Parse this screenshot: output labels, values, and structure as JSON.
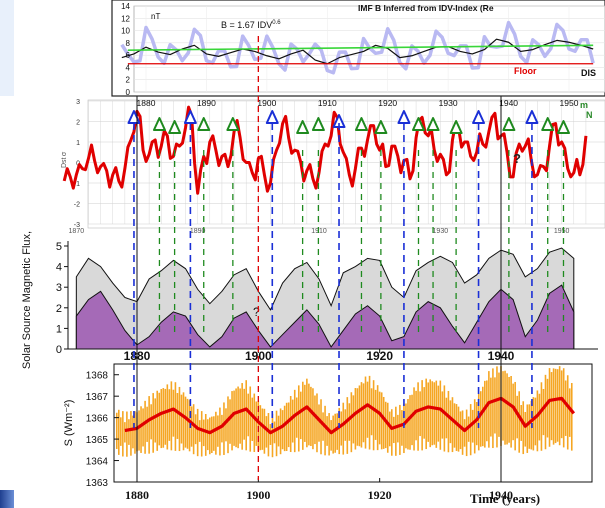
{
  "chart_data": [
    {
      "id": "imf_panel",
      "type": "line",
      "ylabel": "nT",
      "title": "IMF B Inferred from IDV-Index (Re",
      "formula_text": "B = 1.67 IDV",
      "formula_exp": "0.6",
      "floor_label": "Floor",
      "floor_value": 4.6,
      "mean_value": 6.8,
      "ylim": [
        0,
        14
      ],
      "yticks": [
        "14",
        "12",
        "10",
        "8",
        "6",
        "4",
        "2",
        "0"
      ],
      "xlim": [
        1875,
        1955
      ],
      "xticks": [
        "1880",
        "1890",
        "1900",
        "1910",
        "1920",
        "1930",
        "1940",
        "1950"
      ],
      "x": [
        1876,
        1878,
        1880,
        1882,
        1884,
        1886,
        1888,
        1890,
        1892,
        1894,
        1896,
        1898,
        1900,
        1902,
        1904,
        1906,
        1908,
        1910,
        1912,
        1914,
        1916,
        1918,
        1920,
        1922,
        1924,
        1926,
        1928,
        1930,
        1932,
        1934,
        1936,
        1938,
        1940,
        1942,
        1944,
        1946,
        1948,
        1950,
        1952,
        1954
      ],
      "y": [
        5.6,
        6.2,
        7.3,
        6.5,
        6.1,
        7.0,
        7.6,
        6.2,
        5.8,
        6.4,
        7.0,
        6.6,
        5.9,
        5.4,
        6.2,
        6.8,
        5.2,
        4.6,
        5.6,
        6.1,
        6.6,
        7.6,
        7.1,
        5.6,
        5.9,
        6.6,
        7.3,
        7.4,
        6.6,
        6.2,
        6.9,
        8.6,
        8.1,
        6.6,
        6.9,
        7.7,
        8.4,
        8.1,
        7.6,
        7.0
      ],
      "truncated_right_text": "DIS",
      "truncated_right_text_2": "m",
      "truncated_right_text_3": "N"
    },
    {
      "id": "dst_panel",
      "type": "line",
      "ylabel": "Dst σ",
      "ylim": [
        -3,
        3
      ],
      "yticks": [
        "3",
        "2",
        "1",
        "0",
        "-1",
        "-2",
        "-3"
      ],
      "xlim": [
        1868,
        1955
      ],
      "xticks": [
        "1870",
        "1890",
        "1910",
        "1930",
        "1950"
      ],
      "series_color": "#e00000",
      "x": [
        1868,
        1869,
        1870,
        1871,
        1872,
        1873,
        1874,
        1875,
        1876,
        1877,
        1878,
        1879,
        1880,
        1881,
        1882,
        1883,
        1884,
        1885,
        1886,
        1887,
        1888,
        1889,
        1890,
        1891,
        1892,
        1893,
        1894,
        1895,
        1896,
        1897,
        1898,
        1899,
        1900,
        1901,
        1902,
        1903,
        1904,
        1905,
        1906,
        1907,
        1908,
        1909,
        1910,
        1911,
        1912,
        1913,
        1914,
        1915,
        1916,
        1917,
        1918,
        1919,
        1920,
        1921,
        1922,
        1923,
        1924,
        1925,
        1926,
        1927,
        1928,
        1929,
        1930,
        1931,
        1932,
        1933,
        1934,
        1935,
        1936,
        1937,
        1938,
        1939,
        1940,
        1941,
        1942,
        1943,
        1944,
        1945,
        1946,
        1947,
        1948,
        1949,
        1950,
        1951,
        1952,
        1953,
        1954
      ],
      "y": [
        -0.9,
        -0.7,
        -0.6,
        -0.3,
        0.2,
        0.1,
        -0.2,
        -0.4,
        -0.6,
        -0.9,
        -0.3,
        1.1,
        2.5,
        0.6,
        0.4,
        1.1,
        0.8,
        1.3,
        0.3,
        0.8,
        1.7,
        2.3,
        -1.5,
        0.3,
        1.0,
        0.6,
        0.3,
        -0.2,
        1.5,
        1.2,
        0.0,
        -0.5,
        0.2,
        -0.6,
        -1.0,
        0.6,
        1.9,
        1.2,
        0.6,
        0.0,
        -0.4,
        -0.8,
        -0.5,
        0.9,
        1.3,
        2.2,
        0.5,
        -0.6,
        -0.3,
        0.7,
        1.1,
        1.8,
        0.6,
        -0.2,
        0.8,
        0.3,
        0.1,
        -0.8,
        1.2,
        2.2,
        1.3,
        0.6,
        0.4,
        -0.6,
        1.1,
        1.7,
        1.0,
        0.3,
        0.5,
        0.9,
        1.5,
        2.4,
        1.3,
        0.5,
        -0.7,
        0.9,
        0.8,
        0.1,
        -0.6,
        -0.2,
        0.8,
        1.9,
        1.0,
        -0.3,
        -0.5,
        -0.6,
        1.3
      ],
      "markers_blue": [
        1879.5,
        1888.8,
        1902.3,
        1913.3,
        1924.0,
        1936.3,
        1945.1
      ],
      "markers_green": [
        1883.7,
        1886.2,
        1891.0,
        1895.8,
        1907.3,
        1909.9,
        1917.0,
        1920.2,
        1926.4,
        1928.8,
        1932.6,
        1941.3,
        1947.7,
        1950.3
      ],
      "question_mark": "?"
    },
    {
      "id": "flux_panel",
      "type": "area",
      "ylabel": "Solar Source Magnetic Flux,",
      "ylim": [
        0,
        5
      ],
      "yticks": [
        "5",
        "4",
        "3",
        "2",
        "1",
        "0"
      ],
      "xlim": [
        1870,
        1952
      ],
      "xticks": [
        "1880",
        "1900",
        "1920",
        "1940"
      ],
      "x": [
        1870,
        1872,
        1874,
        1876,
        1878,
        1880,
        1882,
        1884,
        1886,
        1888,
        1890,
        1892,
        1894,
        1896,
        1898,
        1900,
        1902,
        1904,
        1906,
        1908,
        1910,
        1912,
        1914,
        1916,
        1918,
        1920,
        1922,
        1924,
        1926,
        1928,
        1930,
        1932,
        1934,
        1936,
        1938,
        1940,
        1942,
        1944,
        1946,
        1948,
        1950,
        1952
      ],
      "series": [
        {
          "name": "",
          "values": [
            3.5,
            4.4,
            4.0,
            3.2,
            2.5,
            2.3,
            3.4,
            3.8,
            4.3,
            3.9,
            2.9,
            2.2,
            2.8,
            3.6,
            3.9,
            2.8,
            1.9,
            3.2,
            3.9,
            4.2,
            3.4,
            2.1,
            3.7,
            4.0,
            4.4,
            4.3,
            3.0,
            2.5,
            3.8,
            4.2,
            4.5,
            4.2,
            3.2,
            3.6,
            4.4,
            4.8,
            4.6,
            3.5,
            3.9,
            4.7,
            4.9,
            4.4
          ]
        },
        {
          "name": "",
          "values": [
            1.6,
            2.4,
            2.8,
            1.9,
            0.9,
            0.2,
            0.6,
            1.3,
            1.8,
            1.6,
            0.7,
            0.1,
            0.6,
            1.5,
            1.8,
            0.9,
            0.1,
            0.7,
            1.3,
            1.9,
            1.2,
            0.1,
            0.9,
            1.7,
            2.1,
            1.6,
            0.4,
            0.6,
            1.8,
            2.3,
            2.0,
            1.1,
            0.3,
            1.3,
            2.3,
            2.9,
            2.4,
            0.6,
            1.4,
            2.7,
            3.1,
            1.8
          ]
        }
      ],
      "question_mark": "?"
    },
    {
      "id": "tsi_panel",
      "type": "line",
      "ylabel": "S (Wm⁻²)",
      "xlabel": "Time (years)",
      "ylim": [
        1363,
        1368.5
      ],
      "yticks": [
        "1368",
        "1367",
        "1366",
        "1365",
        "1364",
        "1363"
      ],
      "xlim": [
        1870,
        1952
      ],
      "xticks": [
        "1880",
        "1900",
        "1920",
        "1940"
      ],
      "x": [
        1870,
        1872,
        1874,
        1876,
        1878,
        1880,
        1882,
        1884,
        1886,
        1888,
        1890,
        1892,
        1894,
        1896,
        1898,
        1900,
        1902,
        1904,
        1906,
        1908,
        1910,
        1912,
        1914,
        1916,
        1918,
        1920,
        1922,
        1924,
        1926,
        1928,
        1930,
        1932,
        1934,
        1936,
        1938,
        1940,
        1942,
        1944,
        1946,
        1948,
        1950,
        1952
      ],
      "series": [
        {
          "name": "",
          "values": [
            1365.6,
            1365.9,
            1365.8,
            1365.6,
            1365.4,
            1365.5,
            1365.9,
            1366.2,
            1366.4,
            1366.0,
            1365.5,
            1365.3,
            1365.6,
            1366.2,
            1366.4,
            1365.8,
            1365.3,
            1365.6,
            1366.1,
            1366.5,
            1365.9,
            1365.3,
            1365.7,
            1366.2,
            1366.6,
            1366.2,
            1365.5,
            1365.7,
            1366.3,
            1366.5,
            1366.4,
            1365.9,
            1365.4,
            1365.9,
            1366.7,
            1366.9,
            1366.5,
            1365.6,
            1366.1,
            1366.8,
            1366.9,
            1366.2
          ]
        }
      ]
    }
  ],
  "vertical_markers": {
    "red_dash_year": 1900,
    "black_lines": [
      1880,
      1940
    ]
  },
  "colors": {
    "red": "#e00000",
    "blue_dash": "#1a2fd6",
    "green_dash": "#1f8a1f",
    "orange": "#f5a623",
    "grey_fill": "#d9d9d9",
    "purple_fill": "#a56ab7",
    "green_mean": "#39d639",
    "imf_band": "#b9b9f2"
  }
}
